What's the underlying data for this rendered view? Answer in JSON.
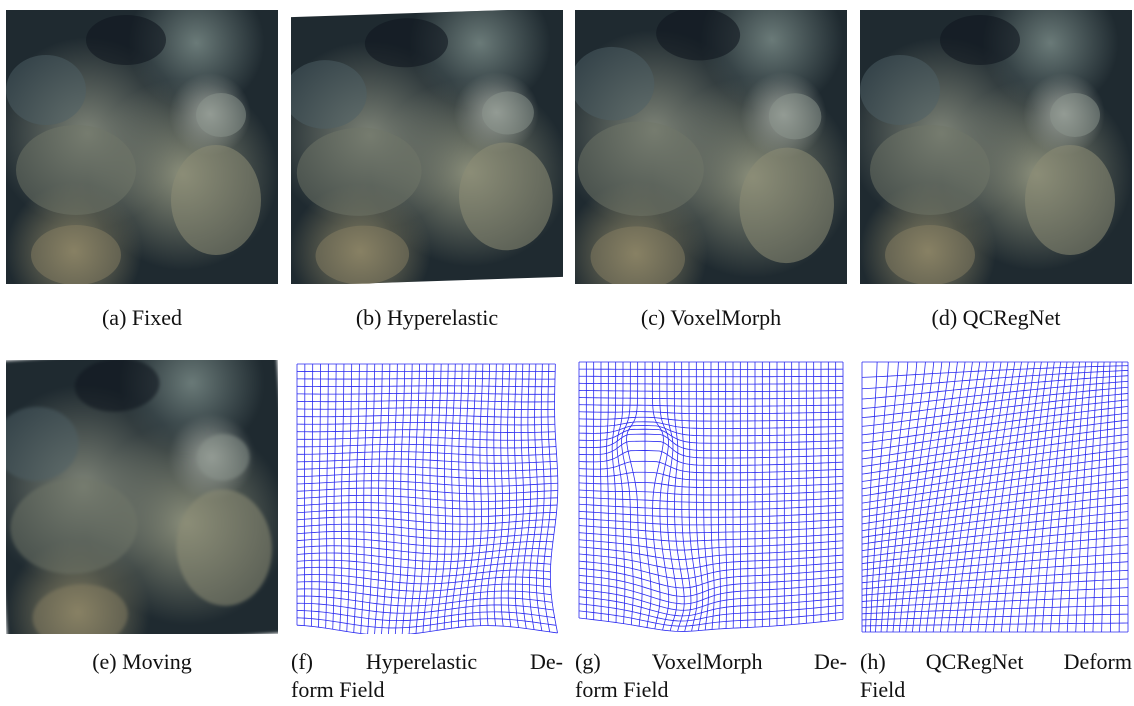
{
  "panels": [
    {
      "lines": [
        "(a) Fixed"
      ]
    },
    {
      "lines": [
        "(b) Hyperelastic"
      ]
    },
    {
      "lines": [
        "(c) VoxelMorph"
      ]
    },
    {
      "lines": [
        "(d) QCRegNet"
      ]
    },
    {
      "lines": [
        "(e) Moving"
      ]
    },
    {
      "lines": [
        "(f) Hyperelastic De-",
        "form Field"
      ]
    },
    {
      "lines": [
        "(g) VoxelMorph De-",
        "form Field"
      ]
    },
    {
      "lines": [
        "(h) QCRegNet Deform",
        "Field"
      ]
    }
  ]
}
